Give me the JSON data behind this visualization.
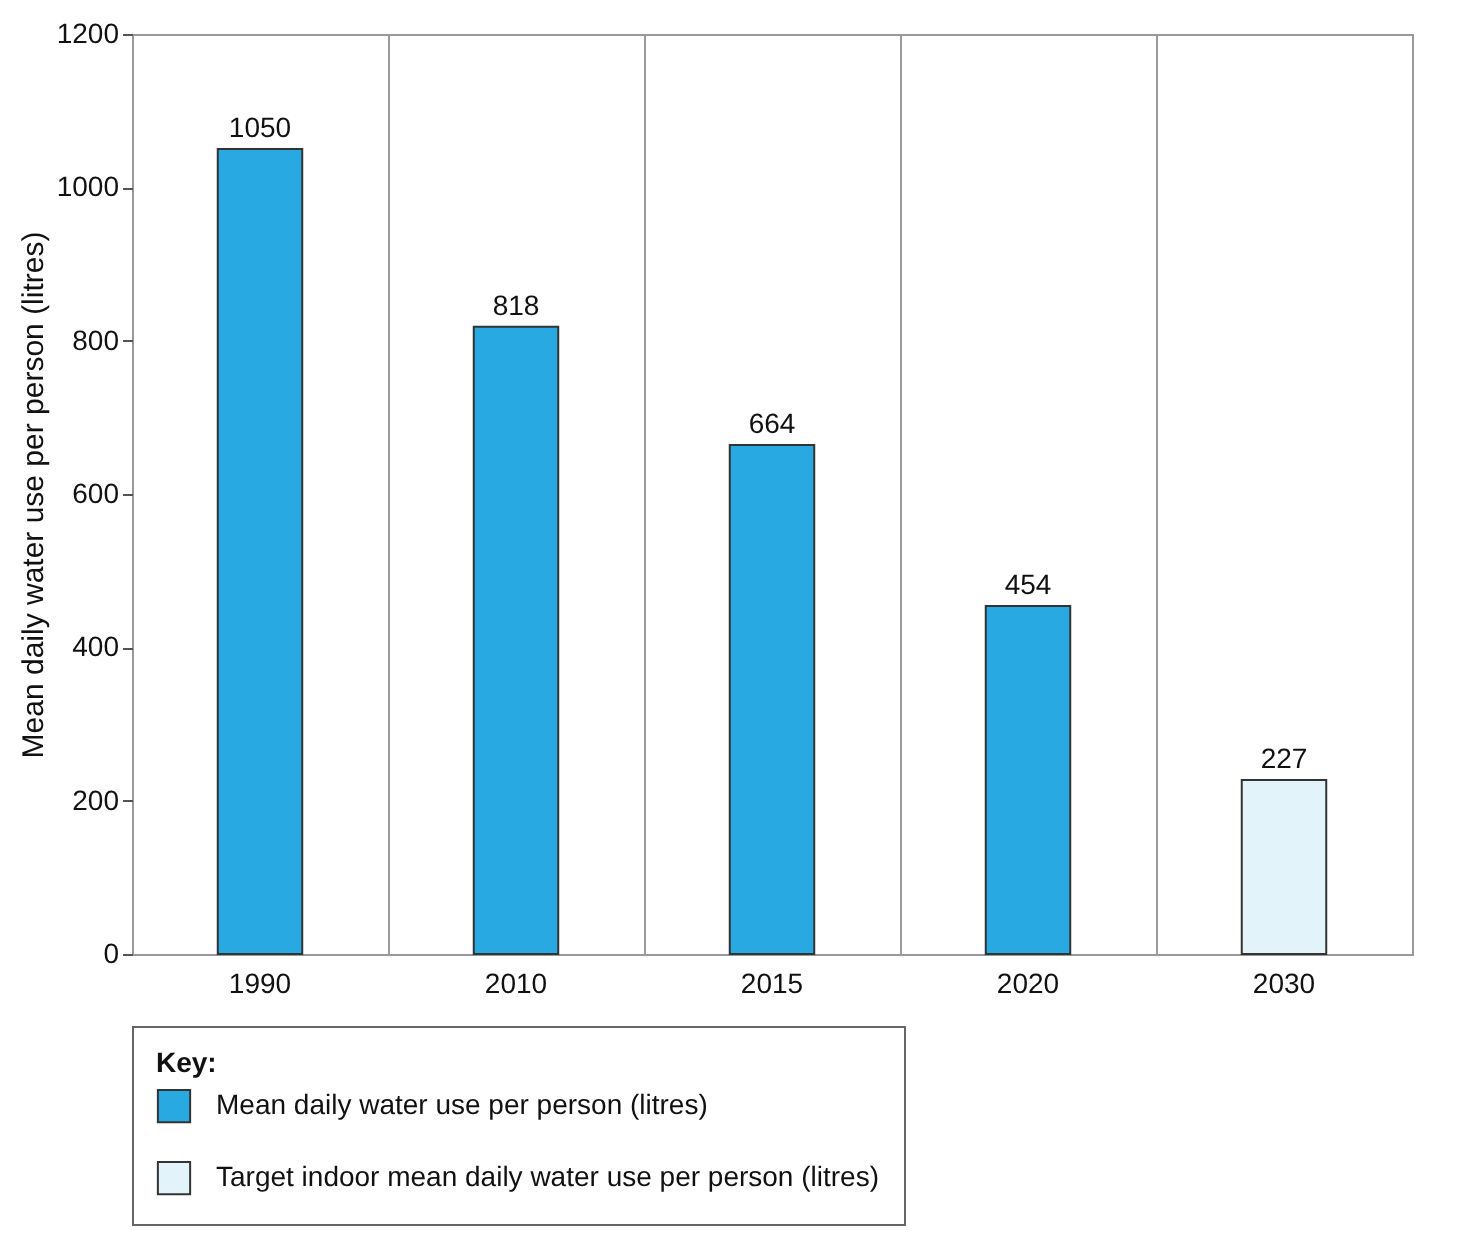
{
  "chart_data": {
    "type": "bar",
    "ylabel": "Mean daily water use per person (litres)",
    "legend_title": "Key:",
    "categories": [
      "1990",
      "2010",
      "2015",
      "2020",
      "2030"
    ],
    "series": [
      {
        "name": "Mean daily water use per person (litres)",
        "color": "#29a9e1",
        "values": [
          1050,
          818,
          664,
          454,
          null
        ]
      },
      {
        "name": "Target indoor mean daily water use per person (litres)",
        "color": "#e3f3fa",
        "values": [
          null,
          null,
          null,
          null,
          227
        ]
      }
    ],
    "ylim": [
      0,
      1200
    ],
    "yticks": [
      0,
      200,
      400,
      600,
      800,
      1000,
      1200
    ],
    "grid": "x",
    "legend": "bottom left",
    "data_labels": true
  }
}
